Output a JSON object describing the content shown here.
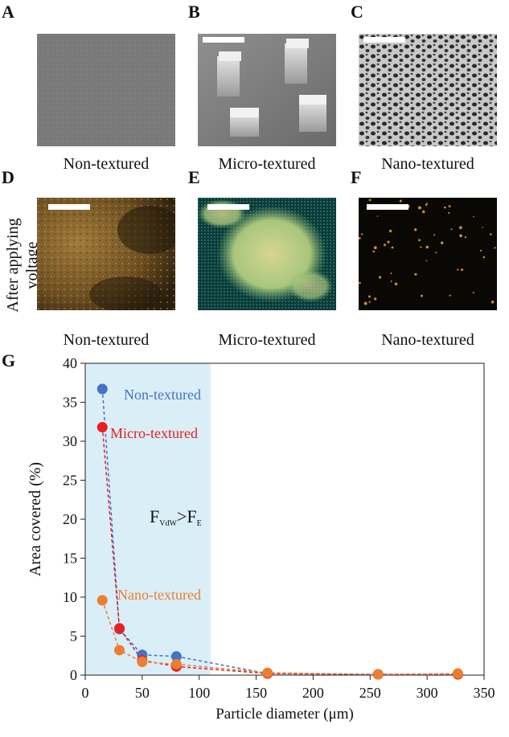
{
  "panels": {
    "top": [
      {
        "letter": "A",
        "caption": "Non-textured"
      },
      {
        "letter": "B",
        "caption": "Micro-textured"
      },
      {
        "letter": "C",
        "caption": "Nano-textured"
      }
    ],
    "bottom": [
      {
        "letter": "D",
        "caption": "Non-textured"
      },
      {
        "letter": "E",
        "caption": "Micro-textured"
      },
      {
        "letter": "F",
        "caption": "Nano-textured"
      }
    ],
    "side_label_line1": "After applying",
    "side_label_line2": "voltage",
    "chart_letter": "G"
  },
  "colors": {
    "non_textured": "#4472c4",
    "micro_textured": "#e8201f",
    "nano_textured": "#ed7d31",
    "shade": "#daeef8"
  },
  "chart_data": {
    "type": "scatter",
    "xlabel": "Particle diameter (μm)",
    "ylabel": "Area covered (%)",
    "xlim": [
      0,
      350
    ],
    "ylim": [
      0,
      40
    ],
    "xticks": [
      0,
      50,
      100,
      150,
      200,
      250,
      300,
      350
    ],
    "yticks": [
      0,
      5,
      10,
      15,
      20,
      25,
      30,
      35,
      40
    ],
    "shaded_region_x": [
      0,
      110
    ],
    "annotation": {
      "main": "F",
      "sub1": "VdW",
      "mid": ">F",
      "sub2": "E"
    },
    "series": [
      {
        "name": "Non-textured",
        "x": [
          15,
          30,
          50,
          80,
          160,
          257,
          327
        ],
        "y": [
          36.7,
          5.9,
          2.6,
          2.4,
          0.2,
          0.1,
          0.1
        ]
      },
      {
        "name": "Micro-textured",
        "x": [
          15,
          30,
          50,
          80,
          160,
          257,
          327
        ],
        "y": [
          31.8,
          6.0,
          1.9,
          1.1,
          0.2,
          0.1,
          0.1
        ]
      },
      {
        "name": "Nano-textured",
        "x": [
          15,
          30,
          50,
          80,
          160,
          257,
          327
        ],
        "y": [
          9.6,
          3.2,
          1.7,
          1.4,
          0.3,
          0.1,
          0.2
        ]
      }
    ]
  }
}
